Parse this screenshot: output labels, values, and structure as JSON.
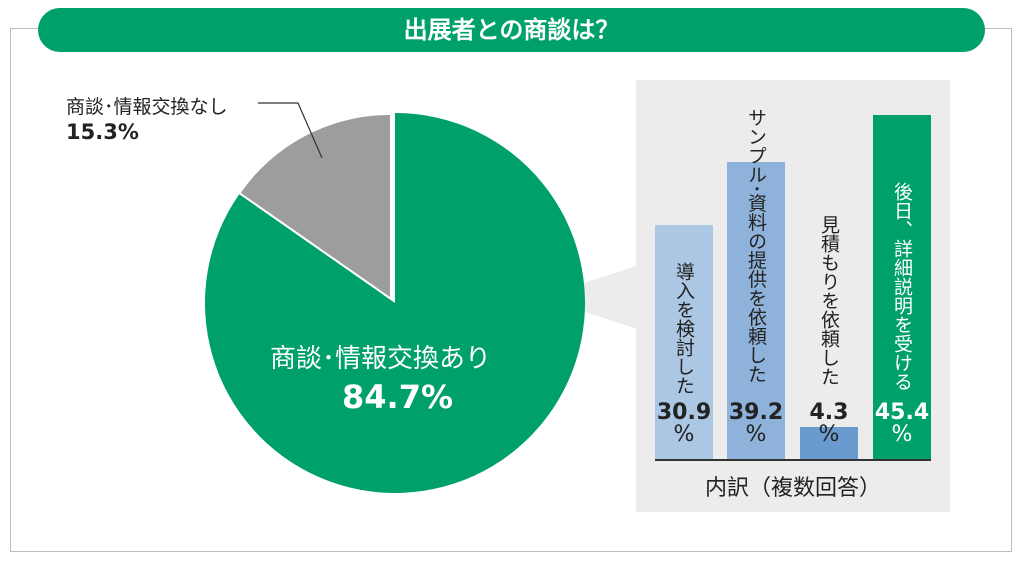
{
  "title": "出展者との商談は？",
  "chart_data": [
    {
      "type": "pie",
      "slices": [
        {
          "label": "商談･情報交換あり",
          "value": 84.7,
          "value_label": "84.7%",
          "color": "#00a06a"
        },
        {
          "label": "商談･情報交換なし",
          "value": 15.3,
          "value_label": "15.3%",
          "color": "#9d9d9f"
        }
      ]
    },
    {
      "type": "bar",
      "title": "内訳（複数回答）",
      "categories": [
        "導入を検討した",
        "サンプル･資料の提供を依頼した",
        "見積もりを依頼した",
        "後日、詳細説明を受ける"
      ],
      "values": [
        30.9,
        39.2,
        4.3,
        45.4
      ],
      "value_labels": [
        "30.9",
        "39.2",
        "4.3",
        "45.4"
      ],
      "unit": "%",
      "colors": [
        "#abc7e4",
        "#8fb2da",
        "#6a9bcf",
        "#00a06a"
      ]
    }
  ]
}
